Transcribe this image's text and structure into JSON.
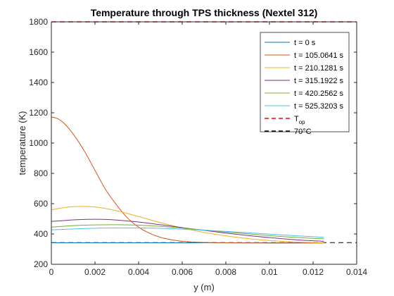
{
  "chart_data": {
    "type": "line",
    "title": "Temperature through TPS thickness (Nextel 312)",
    "xlabel": "y (m)",
    "ylabel": "temperature (K)",
    "xlim": [
      0,
      0.014
    ],
    "ylim": [
      200,
      1800
    ],
    "xticks": [
      "0",
      "0.002",
      "0.004",
      "0.006",
      "0.008",
      "0.01",
      "0.012",
      "0.014"
    ],
    "yticks": [
      "200",
      "400",
      "600",
      "800",
      "1000",
      "1200",
      "1400",
      "1600",
      "1800"
    ],
    "grid": false,
    "legend_position": "top-right",
    "series": [
      {
        "name": "t = 0 s",
        "color": "#0072BD",
        "x": [
          0,
          0.0125
        ],
        "y": [
          342,
          342
        ]
      },
      {
        "name": "t = 105.0641 s",
        "color": "#D95319",
        "x": [
          0,
          0.0003,
          0.0006,
          0.001,
          0.0015,
          0.002,
          0.0025,
          0.003,
          0.0035,
          0.004,
          0.0045,
          0.005,
          0.0055,
          0.006,
          0.007,
          0.008,
          0.009,
          0.01,
          0.011,
          0.0125
        ],
        "y": [
          1172,
          1160,
          1128,
          1060,
          950,
          820,
          690,
          590,
          505,
          445,
          405,
          378,
          362,
          352,
          344,
          342,
          341,
          340,
          340,
          340
        ]
      },
      {
        "name": "t = 210.1281 s",
        "color": "#EDB120",
        "x": [
          0,
          0.0005,
          0.001,
          0.0015,
          0.002,
          0.0025,
          0.003,
          0.0035,
          0.004,
          0.005,
          0.006,
          0.007,
          0.008,
          0.009,
          0.01,
          0.011,
          0.012,
          0.0125
        ],
        "y": [
          560,
          572,
          580,
          582,
          578,
          568,
          553,
          535,
          515,
          475,
          440,
          410,
          388,
          370,
          357,
          348,
          343,
          342
        ]
      },
      {
        "name": "t = 315.1922 s",
        "color": "#7E2F8E",
        "x": [
          0,
          0.0005,
          0.001,
          0.0015,
          0.002,
          0.0025,
          0.003,
          0.004,
          0.005,
          0.006,
          0.007,
          0.008,
          0.009,
          0.01,
          0.011,
          0.012,
          0.0125
        ],
        "y": [
          483,
          488,
          493,
          496,
          497,
          496,
          492,
          479,
          461,
          442,
          424,
          406,
          390,
          376,
          364,
          355,
          352
        ]
      },
      {
        "name": "t = 420.2562 s",
        "color": "#77AC30",
        "x": [
          0,
          0.001,
          0.002,
          0.003,
          0.004,
          0.005,
          0.006,
          0.007,
          0.008,
          0.009,
          0.01,
          0.011,
          0.012,
          0.0125
        ],
        "y": [
          445,
          455,
          460,
          461,
          458,
          450,
          439,
          426,
          413,
          401,
          389,
          379,
          371,
          368
        ]
      },
      {
        "name": "t = 525.3203 s",
        "color": "#4DBEEE",
        "x": [
          0,
          0.001,
          0.002,
          0.003,
          0.004,
          0.005,
          0.006,
          0.007,
          0.008,
          0.009,
          0.01,
          0.011,
          0.012,
          0.0125
        ],
        "y": [
          427,
          433,
          438,
          440,
          440,
          437,
          432,
          425,
          417,
          408,
          399,
          390,
          382,
          378
        ]
      }
    ],
    "reference_lines": [
      {
        "name": "T",
        "name_sub": "op",
        "color": "#FF0000",
        "style": "dashed",
        "y": 1800
      },
      {
        "name": "70°C",
        "color": "#000000",
        "style": "dashed",
        "y": 343.15
      }
    ]
  }
}
